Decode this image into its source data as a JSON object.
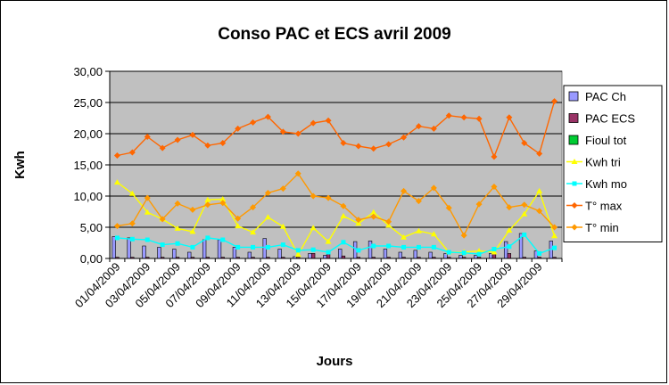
{
  "chart_data": {
    "type": "bar",
    "title": "Conso PAC et ECS avril 2009",
    "xlabel": "Jours",
    "ylabel": "Kwh",
    "ylim": [
      0,
      30
    ],
    "yticks": [
      "0,00",
      "5,00",
      "10,00",
      "15,00",
      "20,00",
      "25,00",
      "30,00"
    ],
    "grid": true,
    "legend_position": "right",
    "categories": [
      "01/04/2009",
      "02/04/2009",
      "03/04/2009",
      "04/04/2009",
      "05/04/2009",
      "06/04/2009",
      "07/04/2009",
      "08/04/2009",
      "09/04/2009",
      "10/04/2009",
      "11/04/2009",
      "12/04/2009",
      "13/04/2009",
      "14/04/2009",
      "15/04/2009",
      "16/04/2009",
      "17/04/2009",
      "18/04/2009",
      "19/04/2009",
      "20/04/2009",
      "21/04/2009",
      "22/04/2009",
      "23/04/2009",
      "24/04/2009",
      "25/04/2009",
      "26/04/2009",
      "27/04/2009",
      "28/04/2009",
      "29/04/2009",
      "30/04/2009"
    ],
    "xtick_labels": [
      "01/04/2009",
      "03/04/2009",
      "05/04/2009",
      "07/04/2009",
      "09/04/2009",
      "11/04/2009",
      "13/04/2009",
      "15/04/2009",
      "17/04/2009",
      "19/04/2009",
      "21/04/2009",
      "23/04/2009",
      "25/04/2009",
      "27/04/2009",
      "29/04/2009"
    ],
    "series": [
      {
        "name": "PAC Ch",
        "type": "bar",
        "color": "#9999ff",
        "values": [
          3.5,
          3.3,
          2.0,
          1.8,
          1.5,
          1.0,
          3.0,
          3.0,
          1.8,
          1.0,
          3.2,
          1.5,
          0.3,
          0.8,
          0.5,
          1.5,
          2.7,
          2.8,
          1.5,
          1.0,
          1.3,
          1.0,
          0.8,
          0.5,
          0.5,
          0.8,
          2.7,
          4.0,
          1.2,
          2.8
        ]
      },
      {
        "name": "PAC ECS",
        "type": "bar",
        "color": "#993366",
        "values": [
          0.2,
          0.2,
          0.2,
          0.2,
          0.2,
          0.2,
          0.2,
          0.2,
          0.2,
          0.2,
          0.2,
          0.2,
          0.2,
          0.8,
          1.0,
          0.4,
          0.2,
          0.2,
          0.2,
          0.2,
          0.2,
          0.2,
          0.2,
          0.2,
          0.2,
          0.7,
          0.8,
          0.2,
          0.2,
          0.2
        ]
      },
      {
        "name": "Fioul tot",
        "type": "bar",
        "color": "#00cc33",
        "values": [
          0,
          0,
          0,
          0,
          0,
          0,
          0,
          0,
          0,
          0,
          0,
          0,
          0,
          0,
          0,
          0,
          0,
          0,
          0,
          0,
          0,
          0,
          0,
          0,
          0,
          0,
          0,
          0,
          0,
          0
        ]
      },
      {
        "name": "Kwh tri",
        "type": "line",
        "color": "#ffff00",
        "marker": "triangle",
        "values": [
          12.2,
          10.4,
          7.4,
          6.3,
          4.8,
          4.3,
          9.4,
          9.5,
          5.2,
          4.2,
          6.6,
          5.1,
          0.6,
          4.9,
          2.7,
          6.8,
          5.6,
          7.4,
          5.3,
          3.4,
          4.4,
          3.9,
          1.0,
          1.0,
          1.2,
          1.0,
          4.5,
          7.1,
          10.8,
          3.6
        ]
      },
      {
        "name": "Kwh mo",
        "type": "line",
        "color": "#00ffff",
        "marker": "square",
        "values": [
          3.3,
          3.1,
          3.0,
          2.2,
          2.4,
          1.8,
          3.3,
          3.0,
          1.8,
          1.8,
          1.8,
          2.2,
          1.3,
          1.4,
          1.0,
          2.6,
          1.3,
          2.0,
          2.0,
          1.8,
          1.8,
          1.8,
          1.0,
          0.9,
          0.7,
          1.5,
          1.9,
          3.8,
          0.8,
          1.7
        ]
      },
      {
        "name": "T° max",
        "type": "line",
        "color": "#ff6600",
        "marker": "diamond",
        "values": [
          16.5,
          17.0,
          19.5,
          17.7,
          19.0,
          19.8,
          18.1,
          18.5,
          20.8,
          21.8,
          22.7,
          20.3,
          20.0,
          21.7,
          22.1,
          18.5,
          18.0,
          17.6,
          18.3,
          19.4,
          21.2,
          20.8,
          22.9,
          22.6,
          22.4,
          16.3,
          22.6,
          18.5,
          16.8,
          25.2
        ]
      },
      {
        "name": "T° min",
        "type": "line",
        "color": "#ff9900",
        "marker": "diamond",
        "values": [
          5.2,
          5.6,
          9.7,
          6.3,
          8.8,
          7.8,
          8.6,
          8.9,
          6.4,
          8.2,
          10.5,
          11.2,
          13.6,
          10.0,
          9.7,
          8.4,
          6.2,
          6.7,
          5.9,
          10.8,
          9.2,
          11.3,
          8.1,
          3.7,
          8.7,
          11.5,
          8.2,
          8.6,
          7.6,
          5.0
        ]
      }
    ]
  }
}
